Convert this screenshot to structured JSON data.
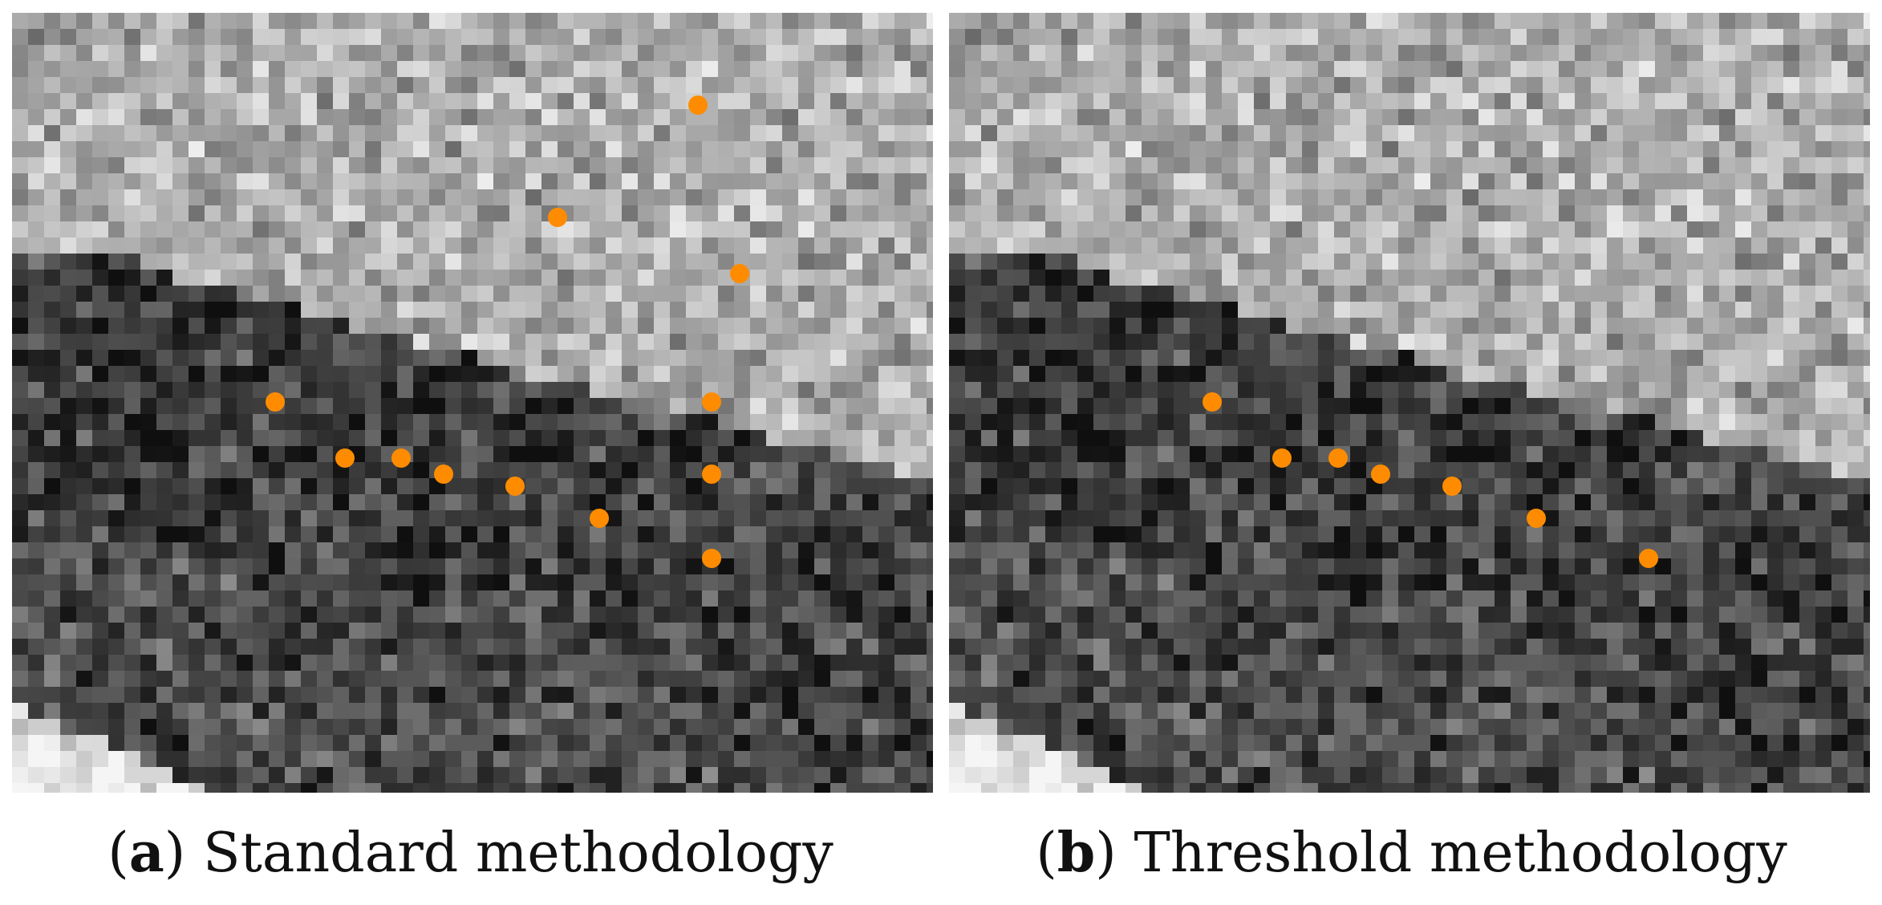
{
  "panels": [
    {
      "id": "a",
      "letter": "a",
      "label": "Standard methodology",
      "marker_color": "#ff8c00"
    },
    {
      "id": "b",
      "letter": "b",
      "label": "Threshold methodology",
      "marker_color": "#ff8c00"
    }
  ]
}
